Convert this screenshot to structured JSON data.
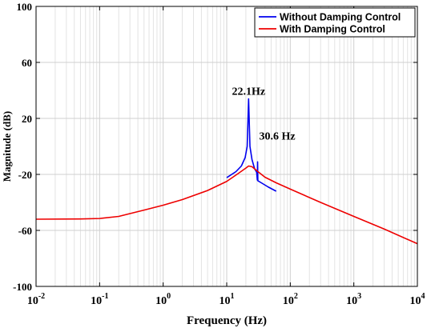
{
  "chart_data": {
    "type": "line",
    "xscale": "log",
    "xlim": [
      0.01,
      10000
    ],
    "ylim": [
      -100,
      100
    ],
    "xlabel": "Frequency (Hz)",
    "ylabel": "Magnitude (dB)",
    "yticks": [
      -100,
      -60,
      -20,
      20,
      60,
      100
    ],
    "xticks": [
      {
        "base": "10",
        "exp": "-2",
        "value": 0.01
      },
      {
        "base": "10",
        "exp": "-1",
        "value": 0.1
      },
      {
        "base": "10",
        "exp": "0",
        "value": 1
      },
      {
        "base": "10",
        "exp": "1",
        "value": 10
      },
      {
        "base": "10",
        "exp": "2",
        "value": 100
      },
      {
        "base": "10",
        "exp": "3",
        "value": 1000
      },
      {
        "base": "10",
        "exp": "4",
        "value": 10000
      }
    ],
    "grid": true,
    "legend_position": "top-right",
    "series": [
      {
        "name": "Without  Damping Control",
        "color": "#0000ee",
        "points": [
          [
            10,
            -22.3
          ],
          [
            14,
            -18.0
          ],
          [
            17,
            -14.0
          ],
          [
            19.5,
            -8.0
          ],
          [
            21,
            0.0
          ],
          [
            22.1,
            34.0
          ],
          [
            23.2,
            0.0
          ],
          [
            25,
            -9.5
          ],
          [
            27.5,
            -16.0
          ],
          [
            29.6,
            -18.5
          ],
          [
            30.3,
            -24.0
          ],
          [
            30.6,
            -11.0
          ],
          [
            30.9,
            -24.5
          ],
          [
            35,
            -26.0
          ],
          [
            45,
            -29.0
          ],
          [
            60,
            -32.0
          ]
        ]
      },
      {
        "name": "With  Damping Control",
        "color": "#ee0000",
        "points": [
          [
            0.01,
            -52.0
          ],
          [
            0.05,
            -51.8
          ],
          [
            0.1,
            -51.5
          ],
          [
            0.2,
            -50.0
          ],
          [
            0.3,
            -48.0
          ],
          [
            0.5,
            -45.5
          ],
          [
            1,
            -42.0
          ],
          [
            2,
            -38.0
          ],
          [
            5,
            -31.5
          ],
          [
            10,
            -25.0
          ],
          [
            15,
            -19.5
          ],
          [
            20,
            -15.5
          ],
          [
            22.1,
            -14.0
          ],
          [
            25,
            -14.5
          ],
          [
            30,
            -17.5
          ],
          [
            40,
            -22.0
          ],
          [
            60,
            -26.0
          ],
          [
            100,
            -30.5
          ],
          [
            300,
            -40.0
          ],
          [
            1000,
            -50.0
          ],
          [
            3000,
            -59.0
          ],
          [
            10000,
            -69.5
          ]
        ]
      }
    ],
    "annotations": [
      {
        "text": "22.1Hz",
        "x": 22.1,
        "y": 37
      },
      {
        "text": "30.6 Hz",
        "x": 30.6,
        "y": 5
      }
    ]
  }
}
